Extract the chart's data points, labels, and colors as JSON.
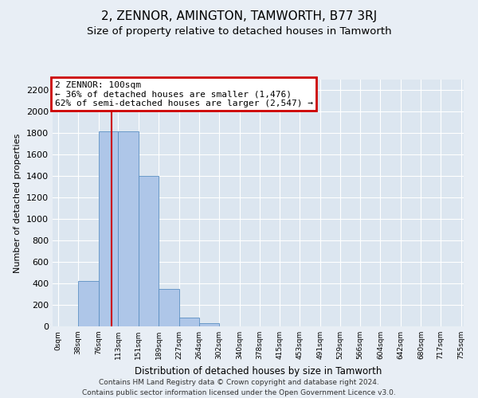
{
  "title": "2, ZENNOR, AMINGTON, TAMWORTH, B77 3RJ",
  "subtitle": "Size of property relative to detached houses in Tamworth",
  "xlabel": "Distribution of detached houses by size in Tamworth",
  "ylabel": "Number of detached properties",
  "bin_labels": [
    "0sqm",
    "38sqm",
    "76sqm",
    "113sqm",
    "151sqm",
    "189sqm",
    "227sqm",
    "264sqm",
    "302sqm",
    "340sqm",
    "378sqm",
    "415sqm",
    "453sqm",
    "491sqm",
    "529sqm",
    "566sqm",
    "604sqm",
    "642sqm",
    "680sqm",
    "717sqm",
    "755sqm"
  ],
  "bin_edges": [
    0,
    38,
    76,
    113,
    151,
    189,
    227,
    264,
    302,
    340,
    378,
    415,
    453,
    491,
    529,
    566,
    604,
    642,
    680,
    717,
    755
  ],
  "bar_heights": [
    0,
    420,
    1820,
    1820,
    1400,
    350,
    80,
    30,
    0,
    0,
    0,
    0,
    0,
    0,
    0,
    0,
    0,
    0,
    0,
    0
  ],
  "bar_color": "#aec6e8",
  "bar_edge_color": "#5a8fc2",
  "property_size": 100,
  "property_line_color": "#cc0000",
  "annotation_line1": "2 ZENNOR: 100sqm",
  "annotation_line2": "← 36% of detached houses are smaller (1,476)",
  "annotation_line3": "62% of semi-detached houses are larger (2,547) →",
  "annotation_box_color": "#cc0000",
  "ylim": [
    0,
    2300
  ],
  "yticks": [
    0,
    200,
    400,
    600,
    800,
    1000,
    1200,
    1400,
    1600,
    1800,
    2000,
    2200
  ],
  "footer_line1": "Contains HM Land Registry data © Crown copyright and database right 2024.",
  "footer_line2": "Contains public sector information licensed under the Open Government Licence v3.0.",
  "bg_color": "#e8eef5",
  "plot_bg_color": "#dce6f0",
  "grid_color": "#ffffff",
  "title_fontsize": 11,
  "subtitle_fontsize": 9.5,
  "ylabel_fontsize": 8,
  "xlabel_fontsize": 8.5,
  "footer_fontsize": 6.5,
  "annotation_fontsize": 8,
  "ytick_fontsize": 8,
  "xtick_fontsize": 6.5
}
